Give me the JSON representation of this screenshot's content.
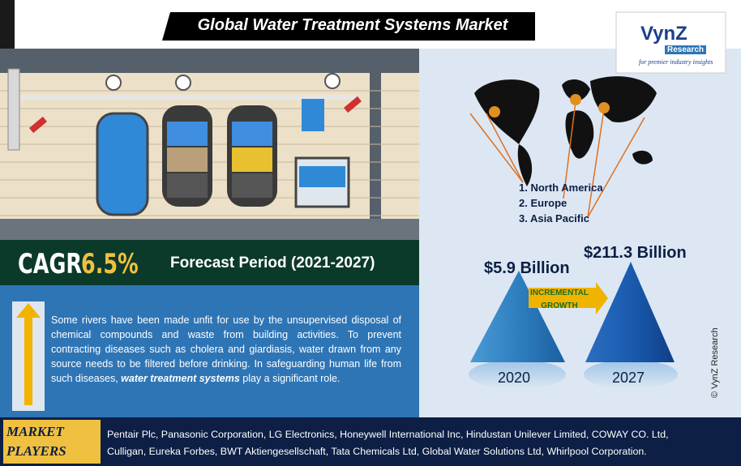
{
  "header": {
    "title": "Global Water Treatment Systems Market"
  },
  "logo": {
    "name": "VynZ",
    "sub": "Research",
    "tagline": "for premier industry insights"
  },
  "regions": [
    "1. North America",
    "2. Europe",
    "3. Asia Pacific"
  ],
  "cagr": {
    "label": "CAGR",
    "value": "6.5%",
    "period": "Forecast Period (2021-2027)"
  },
  "description": {
    "text": "Some rivers have been made unfit for use by the unsupervised disposal of chemical compounds and waste from building activities. To prevent contracting diseases such as cholera and giardiasis, water drawn from any source needs to be filtered before drinking. In safeguarding human life from such diseases, ",
    "emphasis": "water treatment systems",
    "tail": " play a significant role."
  },
  "market_size": {
    "start": {
      "value": "$5.9 Billion",
      "year": "2020"
    },
    "end": {
      "value": "$211.3 Billion",
      "year": "2027"
    },
    "growth_label": "INCREMENTAL GROWTH"
  },
  "copyright": "© VynZ Research",
  "players": {
    "label": "MARKET PLAYERS",
    "lines": [
      "Pentair Plc, Panasonic Corporation, LG Electronics, Honeywell International Inc, Hindustan Unilever Limited, COWAY CO. Ltd,",
      "Culligan, Eureka Forbes, BWT Aktiengesellschaft, Tata Chemicals Ltd, Global Water Solutions Ltd, Whirlpool Corporation."
    ]
  }
}
